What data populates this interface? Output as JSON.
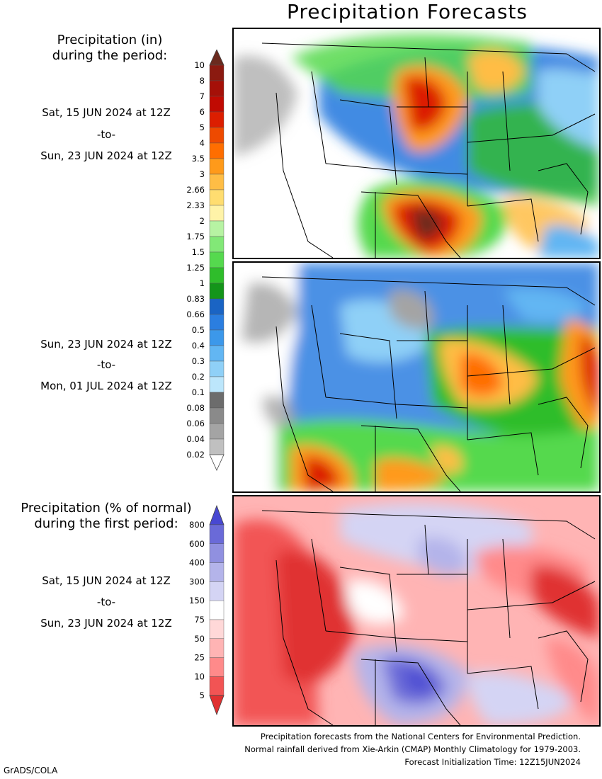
{
  "title": "Precipitation Forecasts",
  "panel1": {
    "heading_line1": "Precipitation (in)",
    "heading_line2": "during the period:",
    "date_start": "Sat, 15 JUN 2024 at 12Z",
    "to": "-to-",
    "date_end": "Sun, 23 JUN 2024 at 12Z"
  },
  "panel2": {
    "date_start": "Sun, 23 JUN 2024 at 12Z",
    "to": "-to-",
    "date_end": "Mon, 01 JUL 2024 at 12Z"
  },
  "panel3": {
    "heading_line1": "Precipitation (% of normal)",
    "heading_line2": "during the first period:",
    "date_start": "Sat, 15 JUN 2024 at 12Z",
    "to": "-to-",
    "date_end": "Sun, 23 JUN 2024 at 12Z"
  },
  "precip_scale": {
    "labels": [
      "10",
      "8",
      "7",
      "6",
      "5",
      "4",
      "3.5",
      "3",
      "2.66",
      "2.33",
      "2",
      "1.75",
      "1.5",
      "1.25",
      "1",
      "0.83",
      "0.66",
      "0.5",
      "0.4",
      "0.3",
      "0.2",
      "0.1",
      "0.08",
      "0.06",
      "0.04",
      "0.02"
    ],
    "colors": [
      "#6b2a1e",
      "#8b1a10",
      "#a51008",
      "#c00a02",
      "#dc1e00",
      "#ee4a00",
      "#ff6e00",
      "#ff9a1a",
      "#ffbd45",
      "#ffdd70",
      "#fff3a8",
      "#b7f3a3",
      "#82e877",
      "#55d94e",
      "#2fbd2b",
      "#14951a",
      "#1a64c4",
      "#2b7ee0",
      "#3c98ea",
      "#62b6f3",
      "#8fd0f7",
      "#bce6fb",
      "#6c6c6c",
      "#8a8a8a",
      "#a4a4a4",
      "#c0c0c0",
      "#ffffff"
    ]
  },
  "pct_scale": {
    "labels": [
      "800",
      "600",
      "400",
      "300",
      "150",
      "75",
      "50",
      "25",
      "10",
      "5"
    ],
    "colors": [
      "#4848d2",
      "#6a6ad8",
      "#9090e0",
      "#b4b4ea",
      "#d4d4f4",
      "#ffffff",
      "#ffd8d8",
      "#ffb4b4",
      "#ff8a8a",
      "#f25454",
      "#e03030"
    ]
  },
  "footer": {
    "line1": "Precipitation forecasts from the National Centers for Environmental Prediction.",
    "line2": "Normal rainfall derived from Xie-Arkin (CMAP) Monthly Climatology for 1979-2003.",
    "line3": "Forecast Initialization Time: 12Z15JUN2024"
  },
  "credit": "GrADS/COLA"
}
